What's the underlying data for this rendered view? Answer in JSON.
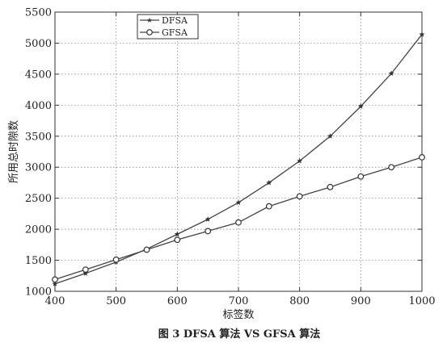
{
  "chart_data": {
    "type": "line",
    "title": "",
    "caption": "图 3 DFSA 算法 VS GFSA 算法",
    "xlabel": "标签数",
    "ylabel": "所用总时隙数",
    "x": [
      400,
      450,
      500,
      550,
      600,
      650,
      700,
      750,
      800,
      850,
      900,
      950,
      1000
    ],
    "xlim": [
      400,
      1000
    ],
    "ylim": [
      1000,
      5500
    ],
    "xticks": [
      400,
      500,
      600,
      700,
      800,
      900,
      1000
    ],
    "yticks": [
      1000,
      1500,
      2000,
      2500,
      3000,
      3500,
      4000,
      4500,
      5000,
      5500
    ],
    "grid": true,
    "legend_position": "top-left",
    "series": [
      {
        "name": "DFSA",
        "marker": "star",
        "values": [
          1120,
          1290,
          1470,
          1680,
          1920,
          2160,
          2430,
          2750,
          3100,
          3500,
          3980,
          4510,
          5140
        ]
      },
      {
        "name": "GFSA",
        "marker": "circle",
        "values": [
          1190,
          1350,
          1510,
          1670,
          1830,
          1970,
          2110,
          2370,
          2530,
          2680,
          2850,
          3000,
          3160
        ]
      }
    ]
  }
}
